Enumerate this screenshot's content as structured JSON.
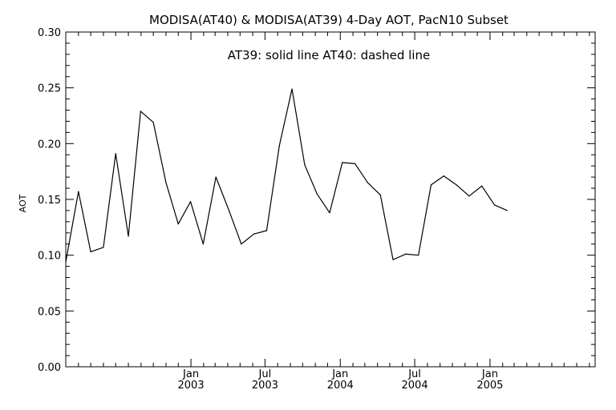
{
  "chart_data": {
    "type": "line",
    "title": "MODISA(AT40) & MODISA(AT39) 4-Day AOT, PacN10 Subset",
    "annotation": "AT39: solid line    AT40: dashed line",
    "xlabel": "",
    "ylabel": "AOT",
    "ylim": [
      0.0,
      0.3
    ],
    "yticks": [
      "0.00",
      "0.05",
      "0.10",
      "0.15",
      "0.20",
      "0.25",
      "0.30"
    ],
    "xlim": [
      "2002-03-01",
      "2005-09-15"
    ],
    "xtick_labels": [
      {
        "date": "2003-01-01",
        "month": "Jan",
        "year": "2003"
      },
      {
        "date": "2003-07-01",
        "month": "Jul",
        "year": "2003"
      },
      {
        "date": "2004-01-01",
        "month": "Jan",
        "year": "2004"
      },
      {
        "date": "2004-07-01",
        "month": "Jul",
        "year": "2004"
      },
      {
        "date": "2005-01-01",
        "month": "Jan",
        "year": "2005"
      }
    ],
    "minor_tick_dates": [
      "2002-04-01",
      "2002-05-01",
      "2002-06-01",
      "2002-07-01",
      "2002-08-01",
      "2002-09-01",
      "2002-10-01",
      "2002-11-01",
      "2002-12-01",
      "2003-02-01",
      "2003-03-01",
      "2003-04-01",
      "2003-05-01",
      "2003-06-01",
      "2003-08-01",
      "2003-09-01",
      "2003-10-01",
      "2003-11-01",
      "2003-12-01",
      "2004-02-01",
      "2004-03-01",
      "2004-04-01",
      "2004-05-01",
      "2004-06-01",
      "2004-08-01",
      "2004-09-01",
      "2004-10-01",
      "2004-11-01",
      "2004-12-01",
      "2005-02-01",
      "2005-03-01",
      "2005-04-01",
      "2005-05-01",
      "2005-06-01",
      "2005-07-01",
      "2005-08-01",
      "2005-09-01"
    ],
    "grid": false,
    "series": [
      {
        "name": "AT39",
        "style": "solid",
        "color": "#000000",
        "points": [
          [
            "2002-03-01",
            0.094
          ],
          [
            "2002-04-01",
            0.157
          ],
          [
            "2002-05-01",
            0.103
          ],
          [
            "2002-06-01",
            0.107
          ],
          [
            "2002-07-01",
            0.191
          ],
          [
            "2002-08-01",
            0.117
          ],
          [
            "2002-08-31",
            0.229
          ],
          [
            "2002-10-01",
            0.219
          ],
          [
            "2002-11-01",
            0.165
          ],
          [
            "2002-12-01",
            0.128
          ],
          [
            "2002-12-31",
            0.148
          ],
          [
            "2003-01-31",
            0.11
          ],
          [
            "2003-03-03",
            0.17
          ],
          [
            "2003-04-03",
            0.141
          ],
          [
            "2003-05-04",
            0.11
          ],
          [
            "2003-06-04",
            0.119
          ],
          [
            "2003-07-05",
            0.122
          ],
          [
            "2003-08-05",
            0.198
          ],
          [
            "2003-09-05",
            0.249
          ],
          [
            "2003-10-06",
            0.181
          ],
          [
            "2003-11-05",
            0.155
          ],
          [
            "2003-12-06",
            0.138
          ],
          [
            "2004-01-06",
            0.183
          ],
          [
            "2004-02-06",
            0.182
          ],
          [
            "2004-03-08",
            0.165
          ],
          [
            "2004-04-08",
            0.154
          ],
          [
            "2004-05-09",
            0.096
          ],
          [
            "2004-06-09",
            0.101
          ],
          [
            "2004-07-10",
            0.1
          ],
          [
            "2004-08-10",
            0.163
          ],
          [
            "2004-09-10",
            0.171
          ],
          [
            "2004-10-11",
            0.163
          ],
          [
            "2004-11-11",
            0.153
          ],
          [
            "2004-12-12",
            0.162
          ],
          [
            "2005-01-12",
            0.145
          ],
          [
            "2005-02-12",
            0.14
          ]
        ]
      }
    ]
  }
}
